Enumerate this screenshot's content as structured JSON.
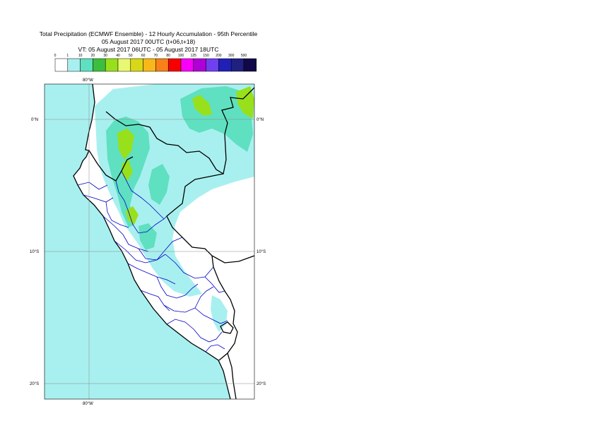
{
  "title": {
    "line1": "Total Precipitation (ECMWF Ensemble) - 12 Hourly Accumulation - 95th Percentile",
    "line2": "05 August 2017 00UTC (t+06,t+18)",
    "line3": "VT: 05 August 2017 06UTC - 05 August 2017 18UTC"
  },
  "legend": {
    "thresholds": [
      "0",
      "1",
      "10",
      "20",
      "30",
      "40",
      "50",
      "60",
      "70",
      "80",
      "100",
      "125",
      "150",
      "200",
      "300",
      "500"
    ],
    "colors": [
      "#ffffff",
      "#a8f0ef",
      "#5fe0c0",
      "#3cbf3c",
      "#98e01c",
      "#e8f870",
      "#d8d818",
      "#f8b818",
      "#f88018",
      "#f80000",
      "#f800f8",
      "#b000d8",
      "#7040f0",
      "#2020b8",
      "#202080",
      "#100848"
    ]
  },
  "map": {
    "lat_labels": [
      "0°N",
      "10°S",
      "20°S"
    ],
    "lon_labels": [
      "80°W",
      "80°W"
    ],
    "colors": {
      "sea": "#a8f0ef",
      "land": "#ffffff",
      "light_rain": "#a8f0ef",
      "moderate_rain": "#5fe0c0",
      "heavy_rain": "#98e01c",
      "coastline": "#000000",
      "region_border": "#0000c8"
    }
  }
}
